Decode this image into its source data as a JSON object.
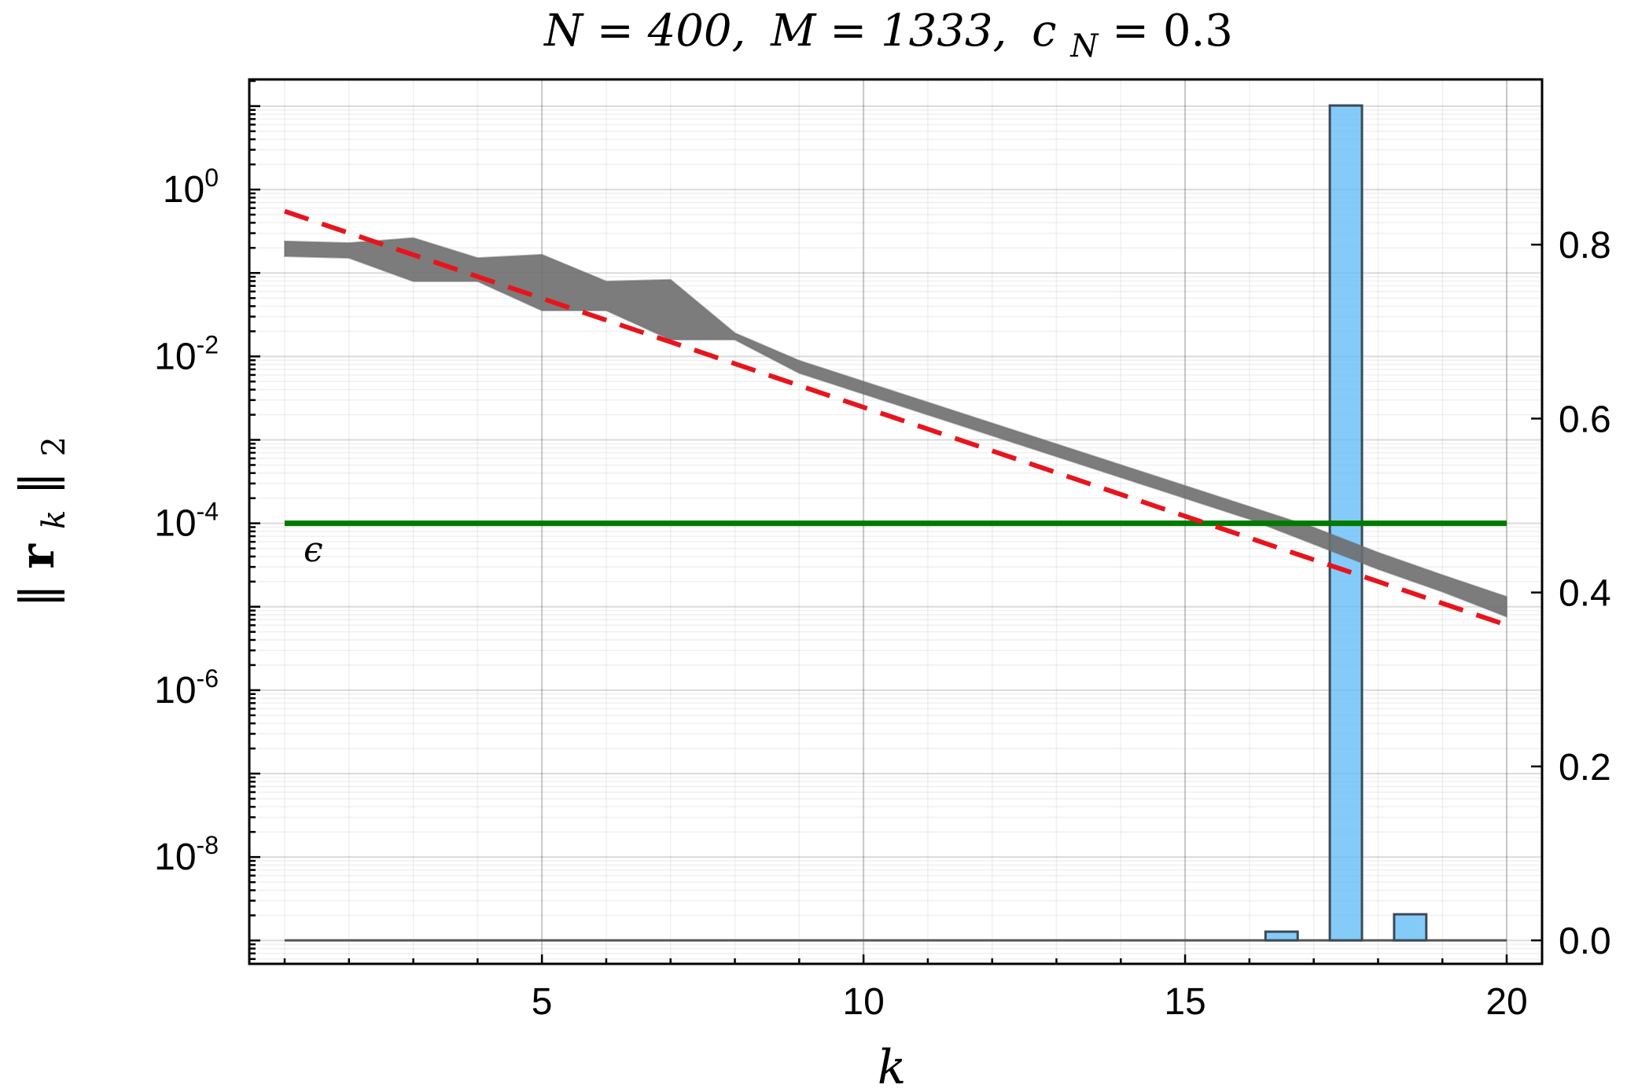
{
  "chart_data": {
    "type": "line",
    "title": "N = 400, M = 1333, c_N = 0.3",
    "title_parts": {
      "n": "N = 400,",
      "m": "M = 1333,",
      "c_sym": "c",
      "c_sub": "N",
      "c_val": " = 0.3"
    },
    "xlabel": "k",
    "ylabel": "||r_k||_2",
    "ylabel_parts": {
      "open": "‖",
      "r": "r",
      "sub": "k",
      "close": "‖",
      "sub2": "2"
    },
    "x_ticks": [
      5,
      10,
      15,
      20
    ],
    "x_tick_labels": [
      "5",
      "10",
      "15",
      "20"
    ],
    "xlim": [
      0.45,
      20.55
    ],
    "y_left": {
      "scale": "log",
      "ticks": [
        0,
        -2,
        -4,
        -6,
        -8
      ],
      "base_label": "10",
      "exponent_labels": [
        "0",
        "-2",
        "-4",
        "-6",
        "-8"
      ],
      "lim_exponent": [
        -9.28,
        1.32
      ]
    },
    "y_right": {
      "scale": "linear",
      "ticks": [
        0.0,
        0.2,
        0.4,
        0.6,
        0.8
      ],
      "tick_labels": [
        "0.0",
        "0.2",
        "0.4",
        "0.6",
        "0.8"
      ],
      "lim": [
        -0.027,
        0.99
      ]
    },
    "residual_band": {
      "color": "#6e6e6e",
      "k": [
        1,
        2,
        3,
        4,
        5,
        6,
        7,
        8,
        9,
        10,
        11,
        12,
        13,
        14,
        15,
        16,
        17,
        18,
        19,
        20
      ],
      "upper_log10": [
        -0.62,
        -0.64,
        -0.58,
        -0.82,
        -0.78,
        -1.1,
        -1.08,
        -1.72,
        -2.05,
        -2.3,
        -2.55,
        -2.8,
        -3.05,
        -3.3,
        -3.55,
        -3.8,
        -4.05,
        -4.35,
        -4.62,
        -4.88
      ],
      "lower_log10": [
        -0.8,
        -0.82,
        -1.1,
        -1.1,
        -1.45,
        -1.45,
        -1.8,
        -1.8,
        -2.2,
        -2.45,
        -2.7,
        -2.95,
        -3.2,
        -3.45,
        -3.7,
        -3.95,
        -4.25,
        -4.55,
        -4.82,
        -5.12
      ]
    },
    "fit_line": {
      "color": "#e8141c",
      "style": "dashed",
      "k": [
        1,
        20
      ],
      "log10": [
        -0.26,
        -5.22
      ]
    },
    "threshold": {
      "color": "#007a00",
      "log10": -4,
      "label": "ϵ"
    },
    "histogram": {
      "color": "#63bdf7",
      "axis": "right",
      "bars": [
        {
          "k": 16.5,
          "value": 0.01
        },
        {
          "k": 17.5,
          "value": 0.96
        },
        {
          "k": 18.5,
          "value": 0.03
        }
      ]
    }
  }
}
